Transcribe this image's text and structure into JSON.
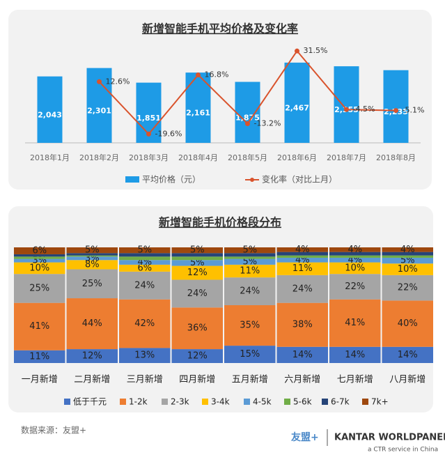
{
  "chart_data": [
    {
      "type": "combo",
      "title": "新增智能手机平均价格及变化率",
      "categories": [
        "2018年1月",
        "2018年2月",
        "2018年3月",
        "2018年4月",
        "2018年5月",
        "2018年6月",
        "2018年7月",
        "2018年8月"
      ],
      "ylim": [
        0,
        3000
      ],
      "y2lim": [
        -25,
        35
      ],
      "series": [
        {
          "name": "平均价格（元）",
          "type": "bar",
          "color": "#1e9be6",
          "values": [
            2043,
            2301,
            1851,
            2161,
            1875,
            2467,
            2355,
            2235
          ],
          "value_labels": [
            "2,043",
            "2,301",
            "1,851",
            "2,161",
            "1,875",
            "2,467",
            "2,355",
            "2,235"
          ]
        },
        {
          "name": "变化率（对比上月）",
          "type": "line",
          "axis": "y2",
          "color": "#d9532c",
          "values": [
            null,
            12.6,
            -19.6,
            16.8,
            -13.2,
            31.5,
            -4.5,
            -5.1
          ],
          "value_labels": [
            null,
            "12.6%",
            "-19.6%",
            "16.8%",
            "-13.2%",
            "31.5%",
            "-4.5%",
            "-5.1%"
          ]
        }
      ]
    },
    {
      "type": "stacked_bar",
      "title": "新增智能手机价格段分布",
      "categories": [
        "一月新增",
        "二月新增",
        "三月新增",
        "四月新增",
        "五月新增",
        "六月新增",
        "七月新增",
        "八月新增"
      ],
      "ylim": [
        0,
        100
      ],
      "series": [
        {
          "name": "低于千元",
          "color": "#4472c4",
          "values": [
            11,
            12,
            13,
            12,
            15,
            14,
            14,
            14
          ],
          "value_labels": [
            "11%",
            "12%",
            "13%",
            "12%",
            "15%",
            "14%",
            "14%",
            "14%"
          ]
        },
        {
          "name": "1-2k",
          "color": "#ed7d31",
          "values": [
            41,
            44,
            42,
            36,
            35,
            38,
            41,
            40
          ],
          "value_labels": [
            "41%",
            "44%",
            "42%",
            "36%",
            "35%",
            "38%",
            "41%",
            "40%"
          ]
        },
        {
          "name": "2-3k",
          "color": "#a5a5a5",
          "values": [
            25,
            25,
            24,
            24,
            24,
            24,
            22,
            22
          ],
          "value_labels": [
            "25%",
            "25%",
            "24%",
            "24%",
            "24%",
            "24%",
            "22%",
            "22%"
          ]
        },
        {
          "name": "3-4k",
          "color": "#ffc000",
          "values": [
            10,
            8,
            6,
            12,
            11,
            11,
            10,
            10
          ],
          "value_labels": [
            "10%",
            "8%",
            "6%",
            "12%",
            "11%",
            "11%",
            "10%",
            "10%"
          ]
        },
        {
          "name": "4-5k",
          "color": "#5b9bd5",
          "values": [
            3,
            3,
            4,
            5,
            5,
            4,
            4,
            5
          ],
          "value_labels": [
            "3%",
            "3%",
            "4%",
            "5%",
            "5%",
            "4%",
            "4%",
            "5%"
          ]
        },
        {
          "name": "5-6k",
          "color": "#70ad47",
          "values": [
            2,
            1,
            3,
            3,
            2,
            2,
            2,
            2
          ]
        },
        {
          "name": "6-7k",
          "color": "#264478",
          "values": [
            2,
            2,
            3,
            3,
            3,
            3,
            3,
            3
          ]
        },
        {
          "name": "7k+",
          "color": "#9e480e",
          "values": [
            6,
            5,
            5,
            5,
            5,
            4,
            4,
            4
          ],
          "value_labels": [
            "6%",
            "5%",
            "5%",
            "5%",
            "5%",
            "4%",
            "4%",
            "4%"
          ]
        }
      ]
    }
  ],
  "footer": {
    "source": "数据来源：友盟+",
    "logo_umeng": "友盟+",
    "logo_kantar": "KANTAR WORLDPANEL",
    "logo_sub": "a CTR service in China"
  }
}
